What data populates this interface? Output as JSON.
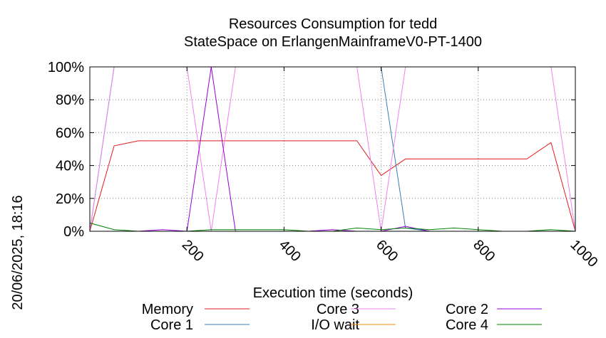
{
  "chart_data": {
    "type": "line",
    "title": "Resources Consumption for tedd",
    "subtitle": "StateSpace on ErlangenMainframeV0-PT-1400",
    "xlabel": "Execution time (seconds)",
    "side_label": "20/06/2025, 18:16",
    "xlim": [
      0,
      1000
    ],
    "ylim": [
      0,
      100
    ],
    "x_ticks": [
      200,
      400,
      600,
      800,
      1000
    ],
    "y_ticks": [
      0,
      20,
      40,
      60,
      80,
      100
    ],
    "y_tick_labels": [
      "0%",
      "20%",
      "40%",
      "60%",
      "80%",
      "100%"
    ],
    "grid": true,
    "legend_position": "bottom",
    "series": [
      {
        "name": "Memory",
        "color": "#e41a1c",
        "x": [
          0,
          50,
          100,
          150,
          200,
          250,
          300,
          350,
          400,
          450,
          500,
          550,
          600,
          650,
          700,
          750,
          800,
          850,
          900,
          950,
          1000
        ],
        "y": [
          0,
          52,
          55,
          55,
          55,
          55,
          55,
          55,
          55,
          55,
          55,
          55,
          34,
          44,
          44,
          44,
          44,
          44,
          44,
          54,
          0
        ]
      },
      {
        "name": "Core 1",
        "color": "#377eb8",
        "x": [
          0,
          50,
          100,
          150,
          200,
          250,
          300,
          350,
          400,
          450,
          500,
          550,
          600,
          650,
          700,
          750,
          800,
          850,
          900,
          950,
          1000
        ],
        "y": [
          0,
          100,
          100,
          100,
          100,
          100,
          100,
          100,
          100,
          100,
          100,
          100,
          100,
          2,
          0,
          0,
          0,
          0,
          0,
          0,
          0
        ]
      },
      {
        "name": "Core 3",
        "color": "#ee82ee",
        "x": [
          0,
          50,
          100,
          150,
          200,
          250,
          300,
          350,
          400,
          450,
          500,
          550,
          600,
          650,
          700,
          750,
          800,
          850,
          900,
          950,
          1000
        ],
        "y": [
          0,
          100,
          100,
          100,
          100,
          0,
          100,
          100,
          100,
          100,
          100,
          100,
          0,
          100,
          100,
          100,
          100,
          100,
          100,
          100,
          0
        ]
      },
      {
        "name": "I/O wait",
        "color": "#ff8c00",
        "x": [
          0,
          50,
          100,
          150,
          200,
          250,
          300,
          350,
          400,
          450,
          500,
          550,
          600,
          650,
          700,
          750,
          800,
          850,
          900,
          950,
          1000
        ],
        "y": [
          0,
          0,
          0,
          0,
          0,
          0,
          0,
          0,
          0,
          0,
          0,
          0,
          0,
          0,
          0,
          0,
          0,
          0,
          0,
          0,
          0
        ]
      },
      {
        "name": "Core 2",
        "color": "#9400d3",
        "x": [
          0,
          50,
          100,
          150,
          200,
          250,
          300,
          350,
          400,
          450,
          500,
          550,
          600,
          650,
          700,
          750,
          800,
          850,
          900,
          950,
          1000
        ],
        "y": [
          0,
          0,
          0,
          1,
          0,
          100,
          0,
          0,
          0,
          0,
          1,
          0,
          0,
          3,
          0,
          0,
          0,
          0,
          0,
          0,
          0
        ]
      },
      {
        "name": "Core 4",
        "color": "#008000",
        "x": [
          0,
          50,
          100,
          150,
          200,
          250,
          300,
          350,
          400,
          450,
          500,
          550,
          600,
          650,
          700,
          750,
          800,
          850,
          900,
          950,
          1000
        ],
        "y": [
          5,
          1,
          0,
          0,
          0,
          1,
          1,
          1,
          1,
          0,
          0,
          2,
          1,
          2,
          1,
          2,
          1,
          0,
          0,
          1,
          0
        ]
      }
    ]
  }
}
